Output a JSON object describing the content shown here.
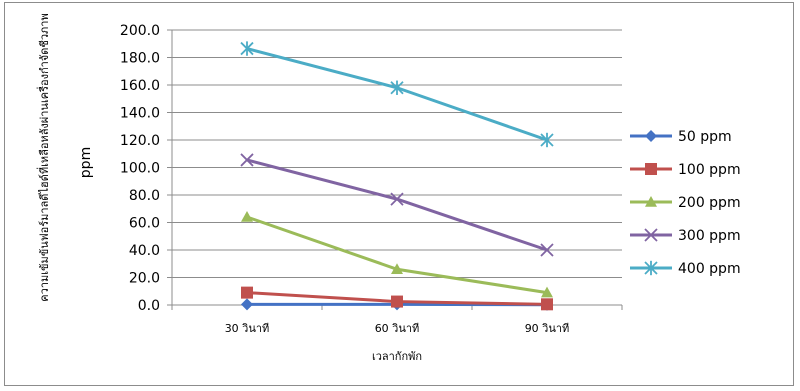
{
  "chart_data": {
    "type": "line",
    "categories": [
      "30 วินาที",
      "60 วินาที",
      "90 วินาที"
    ],
    "series": [
      {
        "name": "50 ppm",
        "values": [
          0.5,
          0.5,
          0.2
        ],
        "color": "#4472C4",
        "marker": "diamond"
      },
      {
        "name": "100 ppm",
        "values": [
          9.0,
          2.5,
          0.5
        ],
        "color": "#C0504D",
        "marker": "square"
      },
      {
        "name": "200 ppm",
        "values": [
          64.0,
          26.0,
          9.0
        ],
        "color": "#9BBB59",
        "marker": "triangle"
      },
      {
        "name": "300 ppm",
        "values": [
          105.5,
          77.0,
          40.0
        ],
        "color": "#8064A2",
        "marker": "x"
      },
      {
        "name": "400 ppm",
        "values": [
          186.5,
          158.0,
          120.0
        ],
        "color": "#4BACC6",
        "marker": "star"
      }
    ],
    "ylim": [
      0,
      200
    ],
    "yticks": [
      "0.0",
      "20.0",
      "40.0",
      "60.0",
      "80.0",
      "100.0",
      "120.0",
      "140.0",
      "160.0",
      "180.0",
      "200.0"
    ],
    "xlabel": "เวลากักพัก",
    "ylabel": "ความเข้มข้นฟอร์มาลดีไฮด์ที่เหลือหลังผ่านเครื่องกำจัดชีวภาพ",
    "yunit": "ppm",
    "grid": true,
    "legend_position": "right"
  }
}
